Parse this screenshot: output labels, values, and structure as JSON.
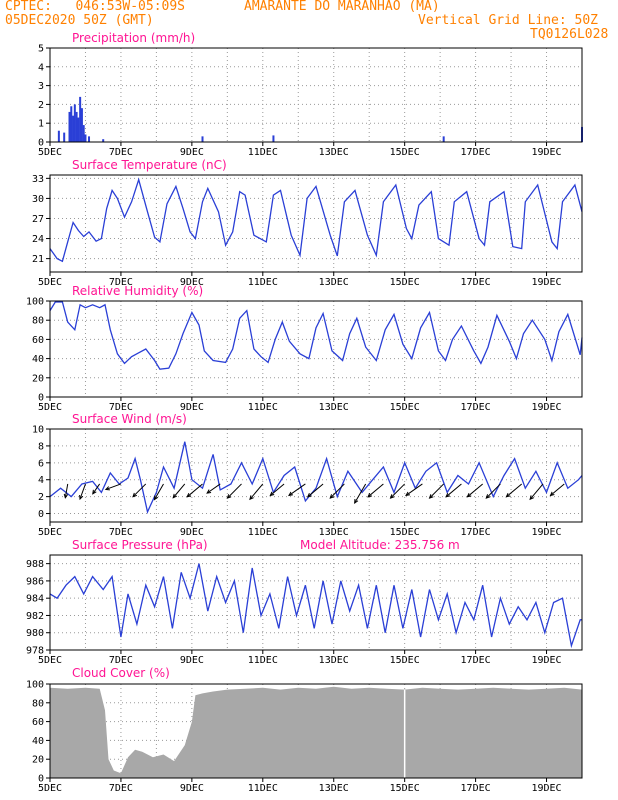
{
  "header": {
    "line1_left": "CPTEC:   046:53W-05:09S",
    "line1_center": "AMARANTE DO MARANHAO (MA)",
    "line2_left": "05DEC2020 50Z (GMT)",
    "line2_right": "Vertical Grid Line: 50Z",
    "line3_right": "TQ0126L028"
  },
  "colors": {
    "header": "#ff8000",
    "title": "#ff1493",
    "series": "#2a3fd6",
    "cloud": "#a8a8a8",
    "grid": "#9a9a9a"
  },
  "x_ticks": [
    "5DEC",
    "7DEC",
    "9DEC",
    "11DEC",
    "13DEC",
    "15DEC",
    "17DEC",
    "19DEC"
  ],
  "x_range_days": [
    0,
    15
  ],
  "chart_data": [
    {
      "type": "bar",
      "title": "Precipitation (mm/h)",
      "ylim": [
        0,
        5
      ],
      "yticks": [
        0,
        1,
        2,
        3,
        4,
        5
      ],
      "x": [
        0.25,
        0.4,
        0.55,
        0.6,
        0.65,
        0.7,
        0.75,
        0.8,
        0.85,
        0.9,
        0.95,
        1.0,
        1.1,
        1.5,
        4.3,
        6.3,
        11.1,
        15.0
      ],
      "values": [
        0.6,
        0.5,
        1.6,
        1.9,
        1.4,
        2.0,
        1.6,
        1.3,
        2.4,
        1.8,
        0.9,
        0.4,
        0.3,
        0.15,
        0.3,
        0.35,
        0.3,
        0.8
      ]
    },
    {
      "type": "line",
      "title": "Surface Temperature (nC)",
      "ylim": [
        19,
        33.5
      ],
      "yticks": [
        21,
        24,
        27,
        30,
        33
      ],
      "x": [
        0,
        0.2,
        0.35,
        0.5,
        0.65,
        0.8,
        0.95,
        1.1,
        1.3,
        1.45,
        1.6,
        1.75,
        1.9,
        2.1,
        2.3,
        2.5,
        2.75,
        2.95,
        3.1,
        3.3,
        3.55,
        3.75,
        3.95,
        4.1,
        4.3,
        4.45,
        4.75,
        4.95,
        5.15,
        5.35,
        5.5,
        5.75,
        6.1,
        6.3,
        6.5,
        6.8,
        7.05,
        7.25,
        7.5,
        7.9,
        8.1,
        8.3,
        8.6,
        8.95,
        9.2,
        9.4,
        9.75,
        10.05,
        10.2,
        10.4,
        10.75,
        10.95,
        11.25,
        11.4,
        11.75,
        12.1,
        12.25,
        12.4,
        12.8,
        13.05,
        13.3,
        13.4,
        13.75,
        14.15,
        14.3,
        14.45,
        14.8,
        15.0
      ],
      "values": [
        22.5,
        21.0,
        20.6,
        23.5,
        26.4,
        25.2,
        24.3,
        25.0,
        23.6,
        24.0,
        28.5,
        31.2,
        30.0,
        27.2,
        29.5,
        32.8,
        28.0,
        24.2,
        23.5,
        29.2,
        31.8,
        28.5,
        25.0,
        24.0,
        29.5,
        31.5,
        28.0,
        23.0,
        25.0,
        31.0,
        30.5,
        24.5,
        23.5,
        30.5,
        31.2,
        24.5,
        21.5,
        30.0,
        31.8,
        24.5,
        21.4,
        29.5,
        31.2,
        24.5,
        21.5,
        29.5,
        32.0,
        25.5,
        24.0,
        29.0,
        31.0,
        24.0,
        23.0,
        29.5,
        31.0,
        24.0,
        23.0,
        29.5,
        31.0,
        22.8,
        22.5,
        29.5,
        32.0,
        23.5,
        22.5,
        29.5,
        32.0,
        28.0
      ]
    },
    {
      "type": "line",
      "title": "Relative Humidity (%)",
      "ylim": [
        0,
        100
      ],
      "yticks": [
        0,
        20,
        40,
        60,
        80,
        100
      ],
      "x": [
        0,
        0.15,
        0.35,
        0.5,
        0.7,
        0.85,
        1.0,
        1.2,
        1.4,
        1.55,
        1.7,
        1.9,
        2.1,
        2.3,
        2.5,
        2.7,
        2.95,
        3.1,
        3.35,
        3.55,
        3.75,
        4.0,
        4.2,
        4.35,
        4.6,
        4.95,
        5.15,
        5.35,
        5.55,
        5.75,
        5.95,
        6.15,
        6.35,
        6.55,
        6.75,
        7.05,
        7.3,
        7.5,
        7.7,
        7.95,
        8.25,
        8.45,
        8.65,
        8.9,
        9.2,
        9.45,
        9.7,
        9.95,
        10.2,
        10.45,
        10.7,
        10.95,
        11.15,
        11.35,
        11.6,
        11.95,
        12.15,
        12.35,
        12.6,
        12.95,
        13.15,
        13.35,
        13.6,
        13.95,
        14.15,
        14.35,
        14.6,
        14.95,
        15.0
      ],
      "values": [
        90,
        99,
        99,
        78,
        70,
        96,
        93,
        96,
        93,
        96,
        70,
        45,
        35,
        42,
        46,
        50,
        38,
        29,
        30,
        45,
        66,
        88,
        75,
        48,
        38,
        36,
        50,
        82,
        90,
        50,
        42,
        36,
        60,
        78,
        58,
        45,
        40,
        72,
        87,
        48,
        38,
        66,
        82,
        52,
        38,
        70,
        86,
        55,
        40,
        72,
        88,
        48,
        38,
        60,
        74,
        48,
        35,
        52,
        85,
        58,
        40,
        66,
        80,
        60,
        38,
        68,
        86,
        44,
        62
      ]
    },
    {
      "type": "line",
      "title": "Surface Wind (m/s)",
      "ylim": [
        -1,
        10
      ],
      "yticks": [
        0,
        2,
        4,
        6,
        8,
        10
      ],
      "x": [
        0,
        0.3,
        0.6,
        0.9,
        1.2,
        1.45,
        1.7,
        1.95,
        2.2,
        2.4,
        2.55,
        2.75,
        3.0,
        3.2,
        3.5,
        3.8,
        4.0,
        4.3,
        4.6,
        4.8,
        5.1,
        5.4,
        5.7,
        6.0,
        6.3,
        6.6,
        6.9,
        7.2,
        7.5,
        7.8,
        8.1,
        8.4,
        8.8,
        9.1,
        9.4,
        9.7,
        10.0,
        10.3,
        10.6,
        10.9,
        11.2,
        11.5,
        11.8,
        12.1,
        12.5,
        12.8,
        13.1,
        13.4,
        13.7,
        14.0,
        14.3,
        14.6,
        14.9,
        15.0
      ],
      "values": [
        2.0,
        3.0,
        2.0,
        3.5,
        3.8,
        2.5,
        4.8,
        3.5,
        4.2,
        6.5,
        4.0,
        0.2,
        2.5,
        5.5,
        3.0,
        8.5,
        4.0,
        3.0,
        7.0,
        2.8,
        3.5,
        6.0,
        3.5,
        6.5,
        2.5,
        4.5,
        5.5,
        1.5,
        3.0,
        6.5,
        2.0,
        5.0,
        2.5,
        4.0,
        5.5,
        2.5,
        6.0,
        3.0,
        5.0,
        6.0,
        2.5,
        4.5,
        3.5,
        6.0,
        2.0,
        4.5,
        6.5,
        3.0,
        5.0,
        2.5,
        6.0,
        3.0,
        4.0,
        4.5
      ],
      "arrows": {
        "x": [
          0.5,
          1.0,
          1.4,
          2.0,
          2.7,
          3.2,
          3.8,
          4.3,
          4.8,
          5.4,
          6.0,
          6.6,
          7.2,
          7.7,
          8.3,
          8.9,
          9.4,
          10.0,
          10.5,
          11.1,
          11.6,
          12.2,
          12.7,
          13.3,
          13.9,
          14.5
        ],
        "dir": [
          190,
          200,
          215,
          250,
          225,
          210,
          220,
          230,
          235,
          225,
          220,
          230,
          235,
          230,
          225,
          210,
          230,
          225,
          235,
          225,
          230,
          230,
          225,
          230,
          220,
          230
        ],
        "len": [
          3.5,
          4.0,
          3.0,
          4.0,
          4.5,
          4.5,
          4.5,
          5.0,
          4.0,
          5.0,
          5.0,
          4.5,
          5.0,
          5.0,
          5.0,
          5.5,
          5.0,
          5.0,
          5.0,
          5.0,
          5.0,
          5.0,
          5.0,
          5.0,
          5.0,
          4.5
        ]
      }
    },
    {
      "type": "line",
      "title": "Surface Pressure (hPa)",
      "annotation": "Model Altitude: 235.756 m",
      "ylim": [
        978,
        989
      ],
      "yticks": [
        978,
        980,
        982,
        984,
        986,
        988
      ],
      "x": [
        0,
        0.2,
        0.45,
        0.7,
        0.95,
        1.2,
        1.5,
        1.75,
        2.0,
        2.2,
        2.45,
        2.7,
        2.95,
        3.2,
        3.45,
        3.7,
        3.95,
        4.2,
        4.45,
        4.7,
        4.95,
        5.2,
        5.45,
        5.7,
        5.95,
        6.2,
        6.45,
        6.7,
        6.95,
        7.2,
        7.45,
        7.7,
        7.95,
        8.2,
        8.45,
        8.7,
        8.95,
        9.2,
        9.45,
        9.7,
        9.95,
        10.2,
        10.45,
        10.7,
        10.95,
        11.2,
        11.45,
        11.7,
        11.95,
        12.2,
        12.45,
        12.7,
        12.95,
        13.2,
        13.45,
        13.7,
        13.95,
        14.2,
        14.45,
        14.7,
        14.95,
        15.0
      ],
      "values": [
        984.5,
        984.0,
        985.5,
        986.5,
        984.5,
        986.5,
        985.0,
        986.5,
        979.5,
        984.5,
        981.0,
        985.5,
        983.0,
        986.5,
        980.5,
        987.0,
        984.0,
        988.0,
        982.5,
        986.5,
        983.5,
        986.0,
        980.0,
        987.5,
        982.0,
        984.5,
        980.5,
        986.5,
        982.0,
        985.5,
        980.5,
        986.0,
        981.0,
        986.0,
        982.5,
        985.5,
        980.5,
        985.5,
        980.0,
        985.5,
        980.5,
        985.0,
        979.5,
        985.0,
        981.5,
        984.5,
        980.0,
        983.5,
        981.5,
        985.5,
        979.5,
        984.0,
        981.0,
        983.0,
        981.5,
        983.5,
        980.0,
        983.5,
        984.0,
        978.5,
        981.5,
        981.5
      ]
    },
    {
      "type": "area",
      "title": "Cloud Cover (%)",
      "ylim": [
        0,
        100
      ],
      "yticks": [
        0,
        20,
        40,
        60,
        80,
        100
      ],
      "x": [
        0,
        0.5,
        1.0,
        1.4,
        1.55,
        1.65,
        1.8,
        2.0,
        2.2,
        2.4,
        2.6,
        2.9,
        3.2,
        3.5,
        3.8,
        4.0,
        4.1,
        4.3,
        4.6,
        5.0,
        5.5,
        6.0,
        6.5,
        7.0,
        7.5,
        8.0,
        8.5,
        9.0,
        9.5,
        10.0,
        10.5,
        11.0,
        11.5,
        12.0,
        12.5,
        13.0,
        13.5,
        14.0,
        14.5,
        15.0
      ],
      "values": [
        96,
        95,
        96,
        95,
        72,
        20,
        8,
        5,
        22,
        30,
        28,
        22,
        25,
        18,
        35,
        60,
        88,
        90,
        92,
        94,
        95,
        96,
        94,
        96,
        95,
        97,
        95,
        96,
        95,
        94,
        96,
        95,
        94,
        95,
        96,
        95,
        94,
        95,
        96,
        94
      ]
    }
  ]
}
